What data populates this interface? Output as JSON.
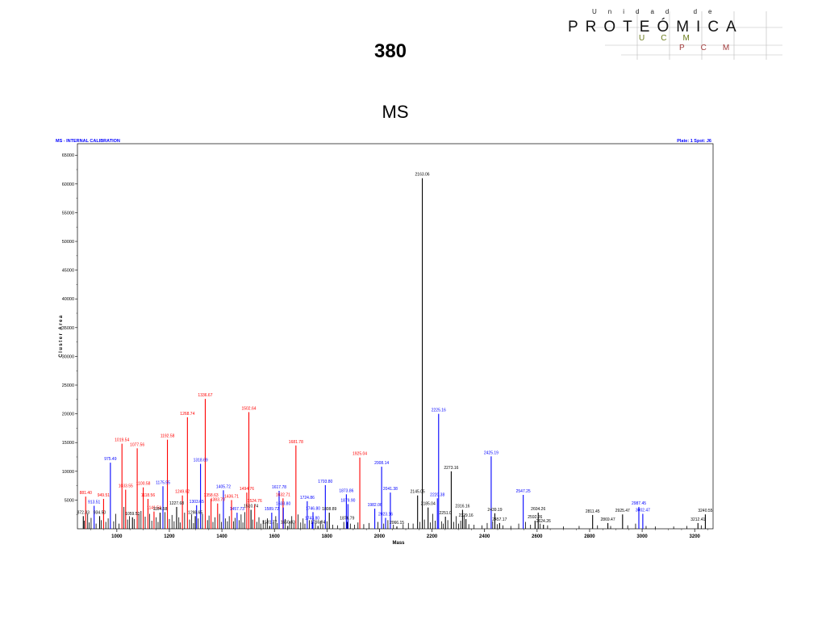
{
  "slide": {
    "number": "380",
    "subtitle": "MS"
  },
  "logo": {
    "top_line": "Unidad de",
    "main_text": "PROTEÓMICA",
    "sub_line_1": "UCM",
    "sub_line_2": "PCM",
    "colors": {
      "main": "#111111",
      "ucm": "#6a7a1a",
      "pcm": "#a03a3a"
    }
  },
  "chart_data": {
    "type": "bar",
    "title": "MS - INTERNAL CALIBRATION",
    "plate_info": "Plate: 1 Spot: J6",
    "xlabel": "Mass",
    "ylabel": "Cluster Area",
    "xlim": [
      850,
      3270
    ],
    "ylim": [
      0,
      67000
    ],
    "x_ticks": [
      1000,
      1200,
      1400,
      1600,
      1800,
      2000,
      2200,
      2400,
      2600,
      2800,
      3000,
      3200
    ],
    "y_ticks": [
      5000,
      10000,
      15000,
      20000,
      25000,
      30000,
      35000,
      40000,
      45000,
      50000,
      55000,
      60000,
      65000
    ],
    "colors": {
      "red": "#ff0000",
      "blue": "#0000ff",
      "black": "#000000"
    },
    "labeled_peaks": [
      {
        "x": 872.33,
        "y": 2200,
        "color": "black",
        "label": "872.33"
      },
      {
        "x": 881.4,
        "y": 5600,
        "color": "red",
        "label": "881.40"
      },
      {
        "x": 913.51,
        "y": 4000,
        "color": "blue",
        "label": "913.51"
      },
      {
        "x": 934.5,
        "y": 2200,
        "color": "black",
        "label": "934.50"
      },
      {
        "x": 949.51,
        "y": 5200,
        "color": "red",
        "label": "949.51"
      },
      {
        "x": 975.49,
        "y": 11500,
        "color": "blue",
        "label": "975.49"
      },
      {
        "x": 1019.54,
        "y": 14800,
        "color": "red",
        "label": "1019.54"
      },
      {
        "x": 1033.55,
        "y": 6800,
        "color": "red",
        "label": "1033.55"
      },
      {
        "x": 1059.53,
        "y": 2000,
        "color": "black",
        "label": "1059.53"
      },
      {
        "x": 1077.56,
        "y": 14000,
        "color": "red",
        "label": "1077.56"
      },
      {
        "x": 1100.58,
        "y": 7200,
        "color": "red",
        "label": "1100.58"
      },
      {
        "x": 1118.56,
        "y": 5200,
        "color": "red",
        "label": "1118.56"
      },
      {
        "x": 1141.54,
        "y": 3000,
        "color": "red",
        "label": "1141.54"
      },
      {
        "x": 1164.58,
        "y": 2800,
        "color": "black",
        "label": "1164.58"
      },
      {
        "x": 1175.55,
        "y": 7400,
        "color": "blue",
        "label": "1175.55"
      },
      {
        "x": 1192.58,
        "y": 15500,
        "color": "red",
        "label": "1192.58"
      },
      {
        "x": 1227.68,
        "y": 3800,
        "color": "black",
        "label": "1227.68"
      },
      {
        "x": 1249.62,
        "y": 5800,
        "color": "red",
        "label": "1249.62"
      },
      {
        "x": 1268.74,
        "y": 19400,
        "color": "red",
        "label": "1268.74"
      },
      {
        "x": 1298.65,
        "y": 2200,
        "color": "black",
        "label": "1298.65"
      },
      {
        "x": 1303.65,
        "y": 4100,
        "color": "blue",
        "label": "1303.65"
      },
      {
        "x": 1318.69,
        "y": 11300,
        "color": "blue",
        "label": "1318.69"
      },
      {
        "x": 1336.67,
        "y": 22600,
        "color": "red",
        "label": "1336.67"
      },
      {
        "x": 1358.63,
        "y": 5200,
        "color": "red",
        "label": "1358.63"
      },
      {
        "x": 1383.7,
        "y": 4400,
        "color": "red",
        "label": "1383.70"
      },
      {
        "x": 1405.72,
        "y": 6700,
        "color": "blue",
        "label": "1405.72"
      },
      {
        "x": 1436.71,
        "y": 5000,
        "color": "red",
        "label": "1436.71"
      },
      {
        "x": 1457.73,
        "y": 2800,
        "color": "blue",
        "label": "1457.73"
      },
      {
        "x": 1494.76,
        "y": 6300,
        "color": "red",
        "label": "1494.76"
      },
      {
        "x": 1502.64,
        "y": 20300,
        "color": "red",
        "label": "1502.64"
      },
      {
        "x": 1510.74,
        "y": 3300,
        "color": "black",
        "label": "1510.74"
      },
      {
        "x": 1524.76,
        "y": 4200,
        "color": "red",
        "label": "1524.76"
      },
      {
        "x": 1581.77,
        "y": 500,
        "color": "black",
        "label": "1581.77"
      },
      {
        "x": 1589.72,
        "y": 2800,
        "color": "blue",
        "label": "1589.72"
      },
      {
        "x": 1617.78,
        "y": 6600,
        "color": "blue",
        "label": "1617.78"
      },
      {
        "x": 1632.71,
        "y": 5300,
        "color": "red",
        "label": "1632.71"
      },
      {
        "x": 1633.8,
        "y": 3700,
        "color": "blue",
        "label": "1633.80"
      },
      {
        "x": 1650.83,
        "y": 500,
        "color": "black",
        "label": "1650.83"
      },
      {
        "x": 1681.78,
        "y": 14500,
        "color": "red",
        "label": "1681.78"
      },
      {
        "x": 1724.86,
        "y": 4800,
        "color": "blue",
        "label": "1724.86"
      },
      {
        "x": 1743.8,
        "y": 1200,
        "color": "blue",
        "label": "1743.80"
      },
      {
        "x": 1746.8,
        "y": 2900,
        "color": "blue",
        "label": "1746.80"
      },
      {
        "x": 1765.84,
        "y": 500,
        "color": "black",
        "label": "1765.84"
      },
      {
        "x": 1793.8,
        "y": 7600,
        "color": "blue",
        "label": "1793.80"
      },
      {
        "x": 1808.89,
        "y": 2800,
        "color": "black",
        "label": "1808.89"
      },
      {
        "x": 1876.79,
        "y": 1200,
        "color": "black",
        "label": "1876.79"
      },
      {
        "x": 1873.86,
        "y": 6000,
        "color": "blue",
        "label": "1873.86"
      },
      {
        "x": 1879.9,
        "y": 4300,
        "color": "blue",
        "label": "1879.90"
      },
      {
        "x": 1925.04,
        "y": 12400,
        "color": "red",
        "label": "1925.04"
      },
      {
        "x": 1982.06,
        "y": 3500,
        "color": "blue",
        "label": "1982.06"
      },
      {
        "x": 2008.14,
        "y": 10800,
        "color": "blue",
        "label": "2008.14"
      },
      {
        "x": 2023.16,
        "y": 1900,
        "color": "blue",
        "label": "2023.16"
      },
      {
        "x": 2041.38,
        "y": 6300,
        "color": "blue",
        "label": "2041.38"
      },
      {
        "x": 2066.15,
        "y": 400,
        "color": "black",
        "label": "2066.15"
      },
      {
        "x": 2145.05,
        "y": 5800,
        "color": "black",
        "label": "2145.05"
      },
      {
        "x": 2163.06,
        "y": 61000,
        "color": "black",
        "label": "2163.06"
      },
      {
        "x": 2185.04,
        "y": 3700,
        "color": "black",
        "label": "2185.04"
      },
      {
        "x": 2220.38,
        "y": 5300,
        "color": "blue",
        "label": "2220.38"
      },
      {
        "x": 2225.16,
        "y": 20000,
        "color": "blue",
        "label": "2225.16"
      },
      {
        "x": 2251.0,
        "y": 2100,
        "color": "black",
        "label": "2251.0"
      },
      {
        "x": 2273.16,
        "y": 10000,
        "color": "black",
        "label": "2273.16"
      },
      {
        "x": 2316.16,
        "y": 3300,
        "color": "black",
        "label": "2316.16"
      },
      {
        "x": 2329.16,
        "y": 1700,
        "color": "black",
        "label": "2329.16"
      },
      {
        "x": 2425.19,
        "y": 12600,
        "color": "blue",
        "label": "2425.19"
      },
      {
        "x": 2439.19,
        "y": 2700,
        "color": "black",
        "label": "2439.19"
      },
      {
        "x": 2457.17,
        "y": 1000,
        "color": "black",
        "label": "2457.17"
      },
      {
        "x": 2547.25,
        "y": 5900,
        "color": "blue",
        "label": "2547.25"
      },
      {
        "x": 2592.26,
        "y": 1400,
        "color": "black",
        "label": "2592.26"
      },
      {
        "x": 2604.26,
        "y": 2800,
        "color": "black",
        "label": "2604.26"
      },
      {
        "x": 2624.26,
        "y": 700,
        "color": "black",
        "label": "2624.26"
      },
      {
        "x": 2811.45,
        "y": 2400,
        "color": "black",
        "label": "2811.45"
      },
      {
        "x": 2869.47,
        "y": 1000,
        "color": "black",
        "label": "2869.47"
      },
      {
        "x": 2925.47,
        "y": 2500,
        "color": "black",
        "label": "2925.47"
      },
      {
        "x": 2987.45,
        "y": 3800,
        "color": "blue",
        "label": "2987.45"
      },
      {
        "x": 3002.47,
        "y": 2600,
        "color": "blue",
        "label": "3002.47"
      },
      {
        "x": 3212.41,
        "y": 1000,
        "color": "black",
        "label": "3212.41"
      },
      {
        "x": 3240.55,
        "y": 2500,
        "color": "black",
        "label": "3240.55"
      }
    ],
    "minor_peaks": [
      {
        "x": 876,
        "y": 1400
      },
      {
        "x": 889,
        "y": 2600
      },
      {
        "x": 895,
        "y": 1100
      },
      {
        "x": 902,
        "y": 1900
      },
      {
        "x": 921,
        "y": 900
      },
      {
        "x": 941,
        "y": 1500
      },
      {
        "x": 958,
        "y": 1200
      },
      {
        "x": 967,
        "y": 1800
      },
      {
        "x": 988,
        "y": 1300
      },
      {
        "x": 996,
        "y": 2600
      },
      {
        "x": 1008,
        "y": 900
      },
      {
        "x": 1027,
        "y": 3800
      },
      {
        "x": 1041,
        "y": 1600
      },
      {
        "x": 1048,
        "y": 2200
      },
      {
        "x": 1066,
        "y": 1700
      },
      {
        "x": 1084,
        "y": 2500
      },
      {
        "x": 1092,
        "y": 3100
      },
      {
        "x": 1108,
        "y": 2100
      },
      {
        "x": 1125,
        "y": 2600
      },
      {
        "x": 1133,
        "y": 1400
      },
      {
        "x": 1150,
        "y": 2000
      },
      {
        "x": 1157,
        "y": 1200
      },
      {
        "x": 1183,
        "y": 2900
      },
      {
        "x": 1200,
        "y": 1700
      },
      {
        "x": 1210,
        "y": 2400
      },
      {
        "x": 1218,
        "y": 1300
      },
      {
        "x": 1236,
        "y": 2000
      },
      {
        "x": 1241,
        "y": 1100
      },
      {
        "x": 1258,
        "y": 2800
      },
      {
        "x": 1277,
        "y": 1600
      },
      {
        "x": 1285,
        "y": 2500
      },
      {
        "x": 1292,
        "y": 1000
      },
      {
        "x": 1310,
        "y": 1800
      },
      {
        "x": 1326,
        "y": 2600
      },
      {
        "x": 1345,
        "y": 1500
      },
      {
        "x": 1351,
        "y": 2300
      },
      {
        "x": 1366,
        "y": 1200
      },
      {
        "x": 1374,
        "y": 2000
      },
      {
        "x": 1391,
        "y": 2600
      },
      {
        "x": 1398,
        "y": 1200
      },
      {
        "x": 1413,
        "y": 1800
      },
      {
        "x": 1421,
        "y": 1300
      },
      {
        "x": 1428,
        "y": 2200
      },
      {
        "x": 1444,
        "y": 1300
      },
      {
        "x": 1450,
        "y": 1900
      },
      {
        "x": 1466,
        "y": 1500
      },
      {
        "x": 1473,
        "y": 2500
      },
      {
        "x": 1480,
        "y": 1100
      },
      {
        "x": 1487,
        "y": 2900
      },
      {
        "x": 1517,
        "y": 1600
      },
      {
        "x": 1533,
        "y": 1200
      },
      {
        "x": 1541,
        "y": 2000
      },
      {
        "x": 1548,
        "y": 900
      },
      {
        "x": 1557,
        "y": 1500
      },
      {
        "x": 1566,
        "y": 1100
      },
      {
        "x": 1573,
        "y": 1800
      },
      {
        "x": 1597,
        "y": 1300
      },
      {
        "x": 1605,
        "y": 2200
      },
      {
        "x": 1611,
        "y": 1000
      },
      {
        "x": 1641,
        "y": 1700
      },
      {
        "x": 1658,
        "y": 1300
      },
      {
        "x": 1666,
        "y": 2200
      },
      {
        "x": 1674,
        "y": 1000
      },
      {
        "x": 1690,
        "y": 2500
      },
      {
        "x": 1700,
        "y": 1100
      },
      {
        "x": 1709,
        "y": 1800
      },
      {
        "x": 1716,
        "y": 900
      },
      {
        "x": 1733,
        "y": 1500
      },
      {
        "x": 1756,
        "y": 1000
      },
      {
        "x": 1775,
        "y": 1400
      },
      {
        "x": 1784,
        "y": 800
      },
      {
        "x": 1800,
        "y": 1300
      },
      {
        "x": 1822,
        "y": 700
      },
      {
        "x": 1840,
        "y": 600
      },
      {
        "x": 1864,
        "y": 1200
      },
      {
        "x": 1889,
        "y": 900
      },
      {
        "x": 1905,
        "y": 700
      },
      {
        "x": 1918,
        "y": 1100
      },
      {
        "x": 1940,
        "y": 800
      },
      {
        "x": 1960,
        "y": 1000
      },
      {
        "x": 1994,
        "y": 1200
      },
      {
        "x": 2016,
        "y": 900
      },
      {
        "x": 2032,
        "y": 1500
      },
      {
        "x": 2053,
        "y": 700
      },
      {
        "x": 2090,
        "y": 800
      },
      {
        "x": 2110,
        "y": 1000
      },
      {
        "x": 2128,
        "y": 900
      },
      {
        "x": 2154,
        "y": 1200
      },
      {
        "x": 2171,
        "y": 1600
      },
      {
        "x": 2194,
        "y": 1100
      },
      {
        "x": 2203,
        "y": 2600
      },
      {
        "x": 2212,
        "y": 1400
      },
      {
        "x": 2236,
        "y": 1300
      },
      {
        "x": 2243,
        "y": 900
      },
      {
        "x": 2260,
        "y": 1500
      },
      {
        "x": 2283,
        "y": 1200
      },
      {
        "x": 2292,
        "y": 2200
      },
      {
        "x": 2301,
        "y": 900
      },
      {
        "x": 2309,
        "y": 1400
      },
      {
        "x": 2322,
        "y": 2400
      },
      {
        "x": 2340,
        "y": 800
      },
      {
        "x": 2360,
        "y": 700
      },
      {
        "x": 2390,
        "y": 600
      },
      {
        "x": 2410,
        "y": 1000
      },
      {
        "x": 2431,
        "y": 1300
      },
      {
        "x": 2448,
        "y": 800
      },
      {
        "x": 2470,
        "y": 600
      },
      {
        "x": 2500,
        "y": 500
      },
      {
        "x": 2530,
        "y": 900
      },
      {
        "x": 2556,
        "y": 1200
      },
      {
        "x": 2575,
        "y": 700
      },
      {
        "x": 2612,
        "y": 900
      },
      {
        "x": 2640,
        "y": 600
      },
      {
        "x": 2700,
        "y": 400
      },
      {
        "x": 2760,
        "y": 500
      },
      {
        "x": 2830,
        "y": 600
      },
      {
        "x": 2880,
        "y": 500
      },
      {
        "x": 2945,
        "y": 600
      },
      {
        "x": 2975,
        "y": 900
      },
      {
        "x": 3015,
        "y": 500
      },
      {
        "x": 3050,
        "y": 400
      },
      {
        "x": 3120,
        "y": 400
      },
      {
        "x": 3170,
        "y": 500
      },
      {
        "x": 3225,
        "y": 600
      }
    ]
  }
}
